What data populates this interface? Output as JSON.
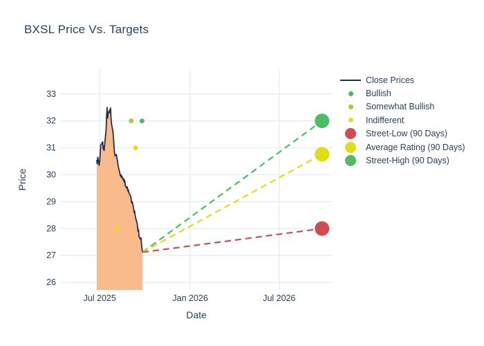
{
  "title": "BXSL Price Vs. Targets",
  "colors": {
    "text": "#2a3f5f",
    "grid": "#e5ecf6",
    "close_line": "#22304a",
    "close_fill": "#f9ba8c",
    "bullish": "#4bbd58",
    "somewhat_bullish": "#a8cc38",
    "indifferent": "#e3e014",
    "street_low": "#d14b50",
    "average_rating": "#e0dd12",
    "street_high": "#4dbd63"
  },
  "legend": {
    "items": [
      {
        "id": "close-prices",
        "label": "Close Prices",
        "color": "#22304a"
      },
      {
        "id": "bullish",
        "label": "Bullish",
        "color": "#4bbd58"
      },
      {
        "id": "somewhat-bullish",
        "label": "Somewhat Bullish",
        "color": "#a8cc38"
      },
      {
        "id": "indifferent",
        "label": "Indifferent",
        "color": "#e3e014"
      },
      {
        "id": "street-low",
        "label": "Street-Low (90 Days)",
        "color": "#d14b50"
      },
      {
        "id": "average-rating",
        "label": "Average Rating (90 Days)",
        "color": "#e0dd12"
      },
      {
        "id": "street-high",
        "label": "Street-High (90 Days)",
        "color": "#4dbd63"
      }
    ]
  },
  "chart_data": {
    "type": "line",
    "title": "BXSL Price Vs. Targets",
    "xlabel": "Date",
    "ylabel": "Price",
    "x_range": [
      "2025-04-13",
      "2026-10-16"
    ],
    "y_range": [
      25.72,
      33.92
    ],
    "y_ticks": [
      26,
      27,
      28,
      29,
      30,
      31,
      32,
      33
    ],
    "x_ticks": [
      {
        "date": "2025-07-01",
        "label": "Jul 2025"
      },
      {
        "date": "2026-01-01",
        "label": "Jan 2026"
      },
      {
        "date": "2026-07-01",
        "label": "Jul 2026"
      }
    ],
    "grid": true,
    "legend_position": "right",
    "close_prices": {
      "name": "Close Prices",
      "fill_to_bottom": true,
      "points": [
        [
          "2025-06-25",
          30.55
        ],
        [
          "2025-06-26",
          30.4
        ],
        [
          "2025-06-27",
          30.65
        ],
        [
          "2025-06-30",
          30.35
        ],
        [
          "2025-07-01",
          30.5
        ],
        [
          "2025-07-02",
          30.8
        ],
        [
          "2025-07-03",
          31.1
        ],
        [
          "2025-07-07",
          31.22
        ],
        [
          "2025-07-08",
          30.95
        ],
        [
          "2025-07-09",
          31.05
        ],
        [
          "2025-07-10",
          30.9
        ],
        [
          "2025-07-11",
          31.1
        ],
        [
          "2025-07-14",
          31.7
        ],
        [
          "2025-07-15",
          32.2
        ],
        [
          "2025-07-16",
          32.5
        ],
        [
          "2025-07-17",
          32.1
        ],
        [
          "2025-07-18",
          32.25
        ],
        [
          "2025-07-21",
          32.4
        ],
        [
          "2025-07-22",
          32.3
        ],
        [
          "2025-07-23",
          32.48
        ],
        [
          "2025-07-24",
          32.1
        ],
        [
          "2025-07-25",
          31.9
        ],
        [
          "2025-07-28",
          31.6
        ],
        [
          "2025-07-29",
          31.4
        ],
        [
          "2025-07-30",
          31.1
        ],
        [
          "2025-07-31",
          30.85
        ],
        [
          "2025-08-01",
          30.7
        ],
        [
          "2025-08-04",
          30.75
        ],
        [
          "2025-08-05",
          30.6
        ],
        [
          "2025-08-06",
          30.55
        ],
        [
          "2025-08-07",
          30.4
        ],
        [
          "2025-08-08",
          30.3
        ],
        [
          "2025-08-11",
          30.05
        ],
        [
          "2025-08-12",
          29.95
        ],
        [
          "2025-08-13",
          30.0
        ],
        [
          "2025-08-14",
          29.9
        ],
        [
          "2025-08-15",
          29.95
        ],
        [
          "2025-08-18",
          29.8
        ],
        [
          "2025-08-19",
          29.85
        ],
        [
          "2025-08-20",
          29.72
        ],
        [
          "2025-08-21",
          29.78
        ],
        [
          "2025-08-22",
          29.6
        ],
        [
          "2025-08-25",
          29.5
        ],
        [
          "2025-08-26",
          29.55
        ],
        [
          "2025-08-27",
          29.4
        ],
        [
          "2025-08-28",
          29.45
        ],
        [
          "2025-08-29",
          29.35
        ],
        [
          "2025-09-02",
          29.2
        ],
        [
          "2025-09-03",
          29.1
        ],
        [
          "2025-09-04",
          28.95
        ],
        [
          "2025-09-05",
          29.0
        ],
        [
          "2025-09-08",
          28.75
        ],
        [
          "2025-09-09",
          28.6
        ],
        [
          "2025-09-10",
          28.65
        ],
        [
          "2025-09-11",
          28.5
        ],
        [
          "2025-09-12",
          28.4
        ],
        [
          "2025-09-15",
          28.2
        ],
        [
          "2025-09-16",
          28.05
        ],
        [
          "2025-09-17",
          27.9
        ],
        [
          "2025-09-18",
          27.95
        ],
        [
          "2025-09-19",
          27.7
        ],
        [
          "2025-09-22",
          27.6
        ],
        [
          "2025-09-23",
          27.65
        ],
        [
          "2025-09-24",
          27.4
        ],
        [
          "2025-09-25",
          27.25
        ],
        [
          "2025-09-26",
          27.12
        ]
      ]
    },
    "ratings": [
      {
        "rating": "somewhat-bullish",
        "label": "Somewhat Bullish",
        "date": "2025-09-03",
        "price": 32
      },
      {
        "rating": "bullish",
        "label": "Bullish",
        "date": "2025-09-25",
        "price": 32
      },
      {
        "rating": "indifferent",
        "label": "Indifferent",
        "date": "2025-09-12",
        "price": 31
      },
      {
        "rating": "indifferent",
        "label": "Indifferent",
        "date": "2025-08-06",
        "price": 28
      }
    ],
    "targets": {
      "date": "2026-09-26",
      "projection_start": {
        "date": "2025-09-26",
        "price": 27.12
      },
      "items": [
        {
          "id": "street-high",
          "label": "Street-High (90 Days)",
          "value": 32.0
        },
        {
          "id": "average-rating",
          "label": "Average Rating (90 Days)",
          "value": 30.76
        },
        {
          "id": "street-low",
          "label": "Street-Low (90 Days)",
          "value": 28.0
        }
      ]
    }
  }
}
